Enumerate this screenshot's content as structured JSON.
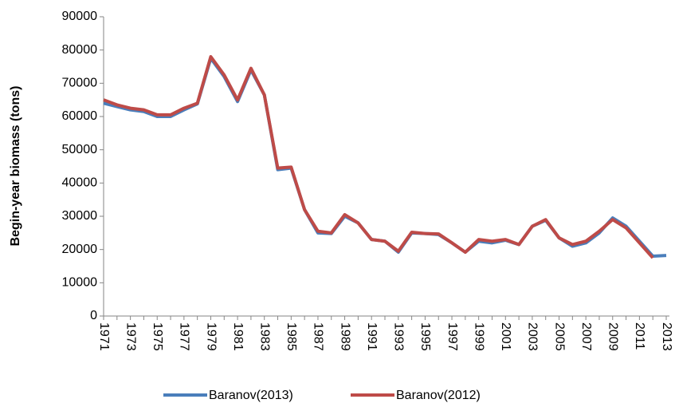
{
  "chart_data": {
    "type": "line",
    "y_label": "Begin-year biomass  (tons)",
    "categories": [
      "1971",
      null,
      "1973",
      null,
      "1975",
      null,
      "1977",
      null,
      "1979",
      null,
      "1981",
      null,
      "1983",
      null,
      "1985",
      null,
      "1987",
      null,
      "1989",
      null,
      "1991",
      null,
      "1993",
      null,
      "1995",
      null,
      "1997",
      null,
      "1999",
      null,
      "2001",
      null,
      "2003",
      null,
      "2005",
      null,
      "2007",
      null,
      "2009",
      null,
      "2011",
      null,
      "2013"
    ],
    "series": [
      {
        "name": "Baranov(2013)",
        "color": "#4a7ebb",
        "values": [
          64000,
          63000,
          62000,
          61500,
          60000,
          60000,
          62000,
          63800,
          77500,
          72000,
          64500,
          74000,
          66500,
          44000,
          44500,
          32000,
          25000,
          24800,
          30000,
          28000,
          23000,
          22500,
          19200,
          25000,
          24800,
          24500,
          22000,
          19200,
          22500,
          22000,
          22800,
          21500,
          27000,
          28800,
          23500,
          21000,
          22000,
          25000,
          29500,
          27000,
          22500,
          18000,
          18200
        ]
      },
      {
        "name": "Baranov(2012)",
        "color": "#be4b48",
        "values": [
          65000,
          63500,
          62500,
          62000,
          60500,
          60500,
          62500,
          64000,
          78000,
          72500,
          65000,
          74500,
          66500,
          44500,
          44800,
          32000,
          25500,
          25000,
          30500,
          28000,
          23000,
          22500,
          19500,
          25200,
          24800,
          24700,
          22000,
          19200,
          23000,
          22500,
          23000,
          21500,
          27000,
          29000,
          23500,
          21500,
          22500,
          25500,
          29000,
          26500,
          22000,
          17500,
          null
        ]
      }
    ],
    "ylim": [
      0,
      90000
    ],
    "yticks": [
      0,
      10000,
      20000,
      30000,
      40000,
      50000,
      60000,
      70000,
      80000,
      90000
    ],
    "legend": "bottom"
  }
}
